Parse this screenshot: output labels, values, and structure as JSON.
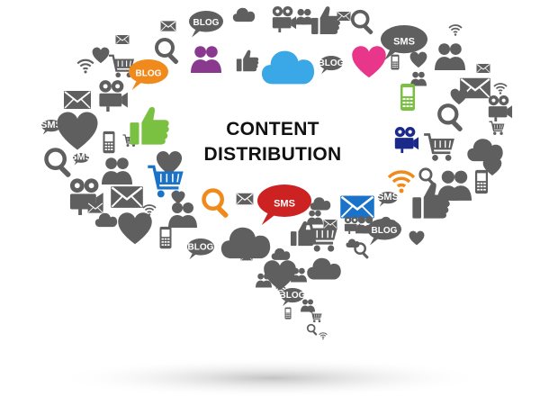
{
  "title": {
    "line1": "CONTENT",
    "line2": "DISTRIBUTION"
  },
  "icon_labels": {
    "blog": "BLOG",
    "sms": "SMS"
  },
  "colors": {
    "icon_gray": "#5f5f5f",
    "accent_orange": "#f08a1c",
    "accent_red": "#cc2222",
    "accent_pink": "#e8378a",
    "accent_green": "#7ac142",
    "accent_blue": "#1a73c8",
    "accent_navy": "#1b2a8a",
    "accent_purple": "#8a3a8e",
    "cloud_blue": "#3aa7e6",
    "shadow": "#c8c8c8"
  },
  "icons": [
    "blog-icon",
    "sms-icon",
    "thumbs-up-icon",
    "heart-icon",
    "cloud-icon",
    "envelope-icon",
    "search-icon",
    "video-camera-icon",
    "mobile-phone-icon",
    "shopping-cart-icon",
    "people-icon",
    "wifi-icon"
  ]
}
